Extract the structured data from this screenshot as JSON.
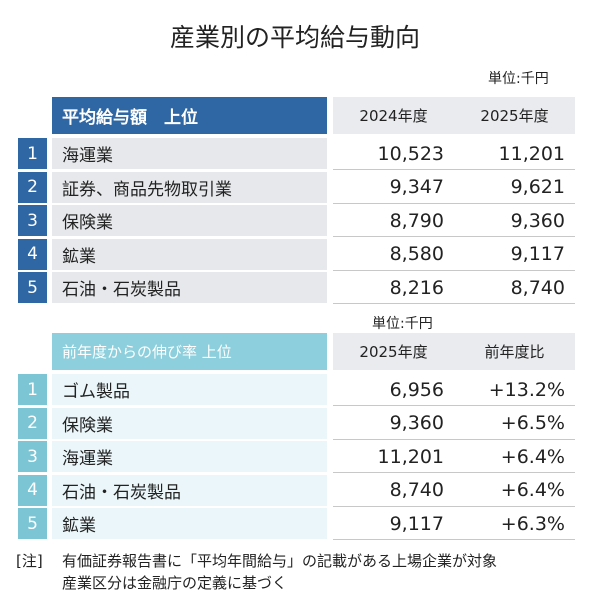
{
  "title": "産業別の平均給与動向",
  "ranking_top": {
    "unit": "単位:千円",
    "header": [
      "平均給与額　上位",
      "2024年度",
      "2025年度"
    ],
    "rows": [
      [
        "1",
        "海運業",
        "10,523",
        "11,201"
      ],
      [
        "2",
        "証券、商品先物取引業",
        "9,347",
        "9,621"
      ],
      [
        "3",
        "保険業",
        "8,790",
        "9,360"
      ],
      [
        "4",
        "鉱業",
        "8,580",
        "9,117"
      ],
      [
        "5",
        "石油・石炭製品",
        "8,216",
        "8,740"
      ]
    ]
  },
  "ranking_growth": {
    "unit": "単位:千円",
    "header": [
      "前年度からの伸び率 上位",
      "2025年度",
      "前年度比"
    ],
    "rows": [
      [
        "1",
        "ゴム製品",
        "6,956",
        "+13.2%"
      ],
      [
        "2",
        "保険業",
        "9,360",
        "+6.5%"
      ],
      [
        "3",
        "海運業",
        "11,201",
        "+6.4%"
      ],
      [
        "4",
        "石油・石炭製品",
        "8,740",
        "+6.4%"
      ],
      [
        "5",
        "鉱業",
        "9,117",
        "+6.3%"
      ]
    ]
  },
  "note": {
    "label": "[注]",
    "lines": [
      "有価証券報告書に「平均年間給与」の記載がある上場企業が対象",
      "産業区分は金融庁の定義に基づく"
    ]
  }
}
